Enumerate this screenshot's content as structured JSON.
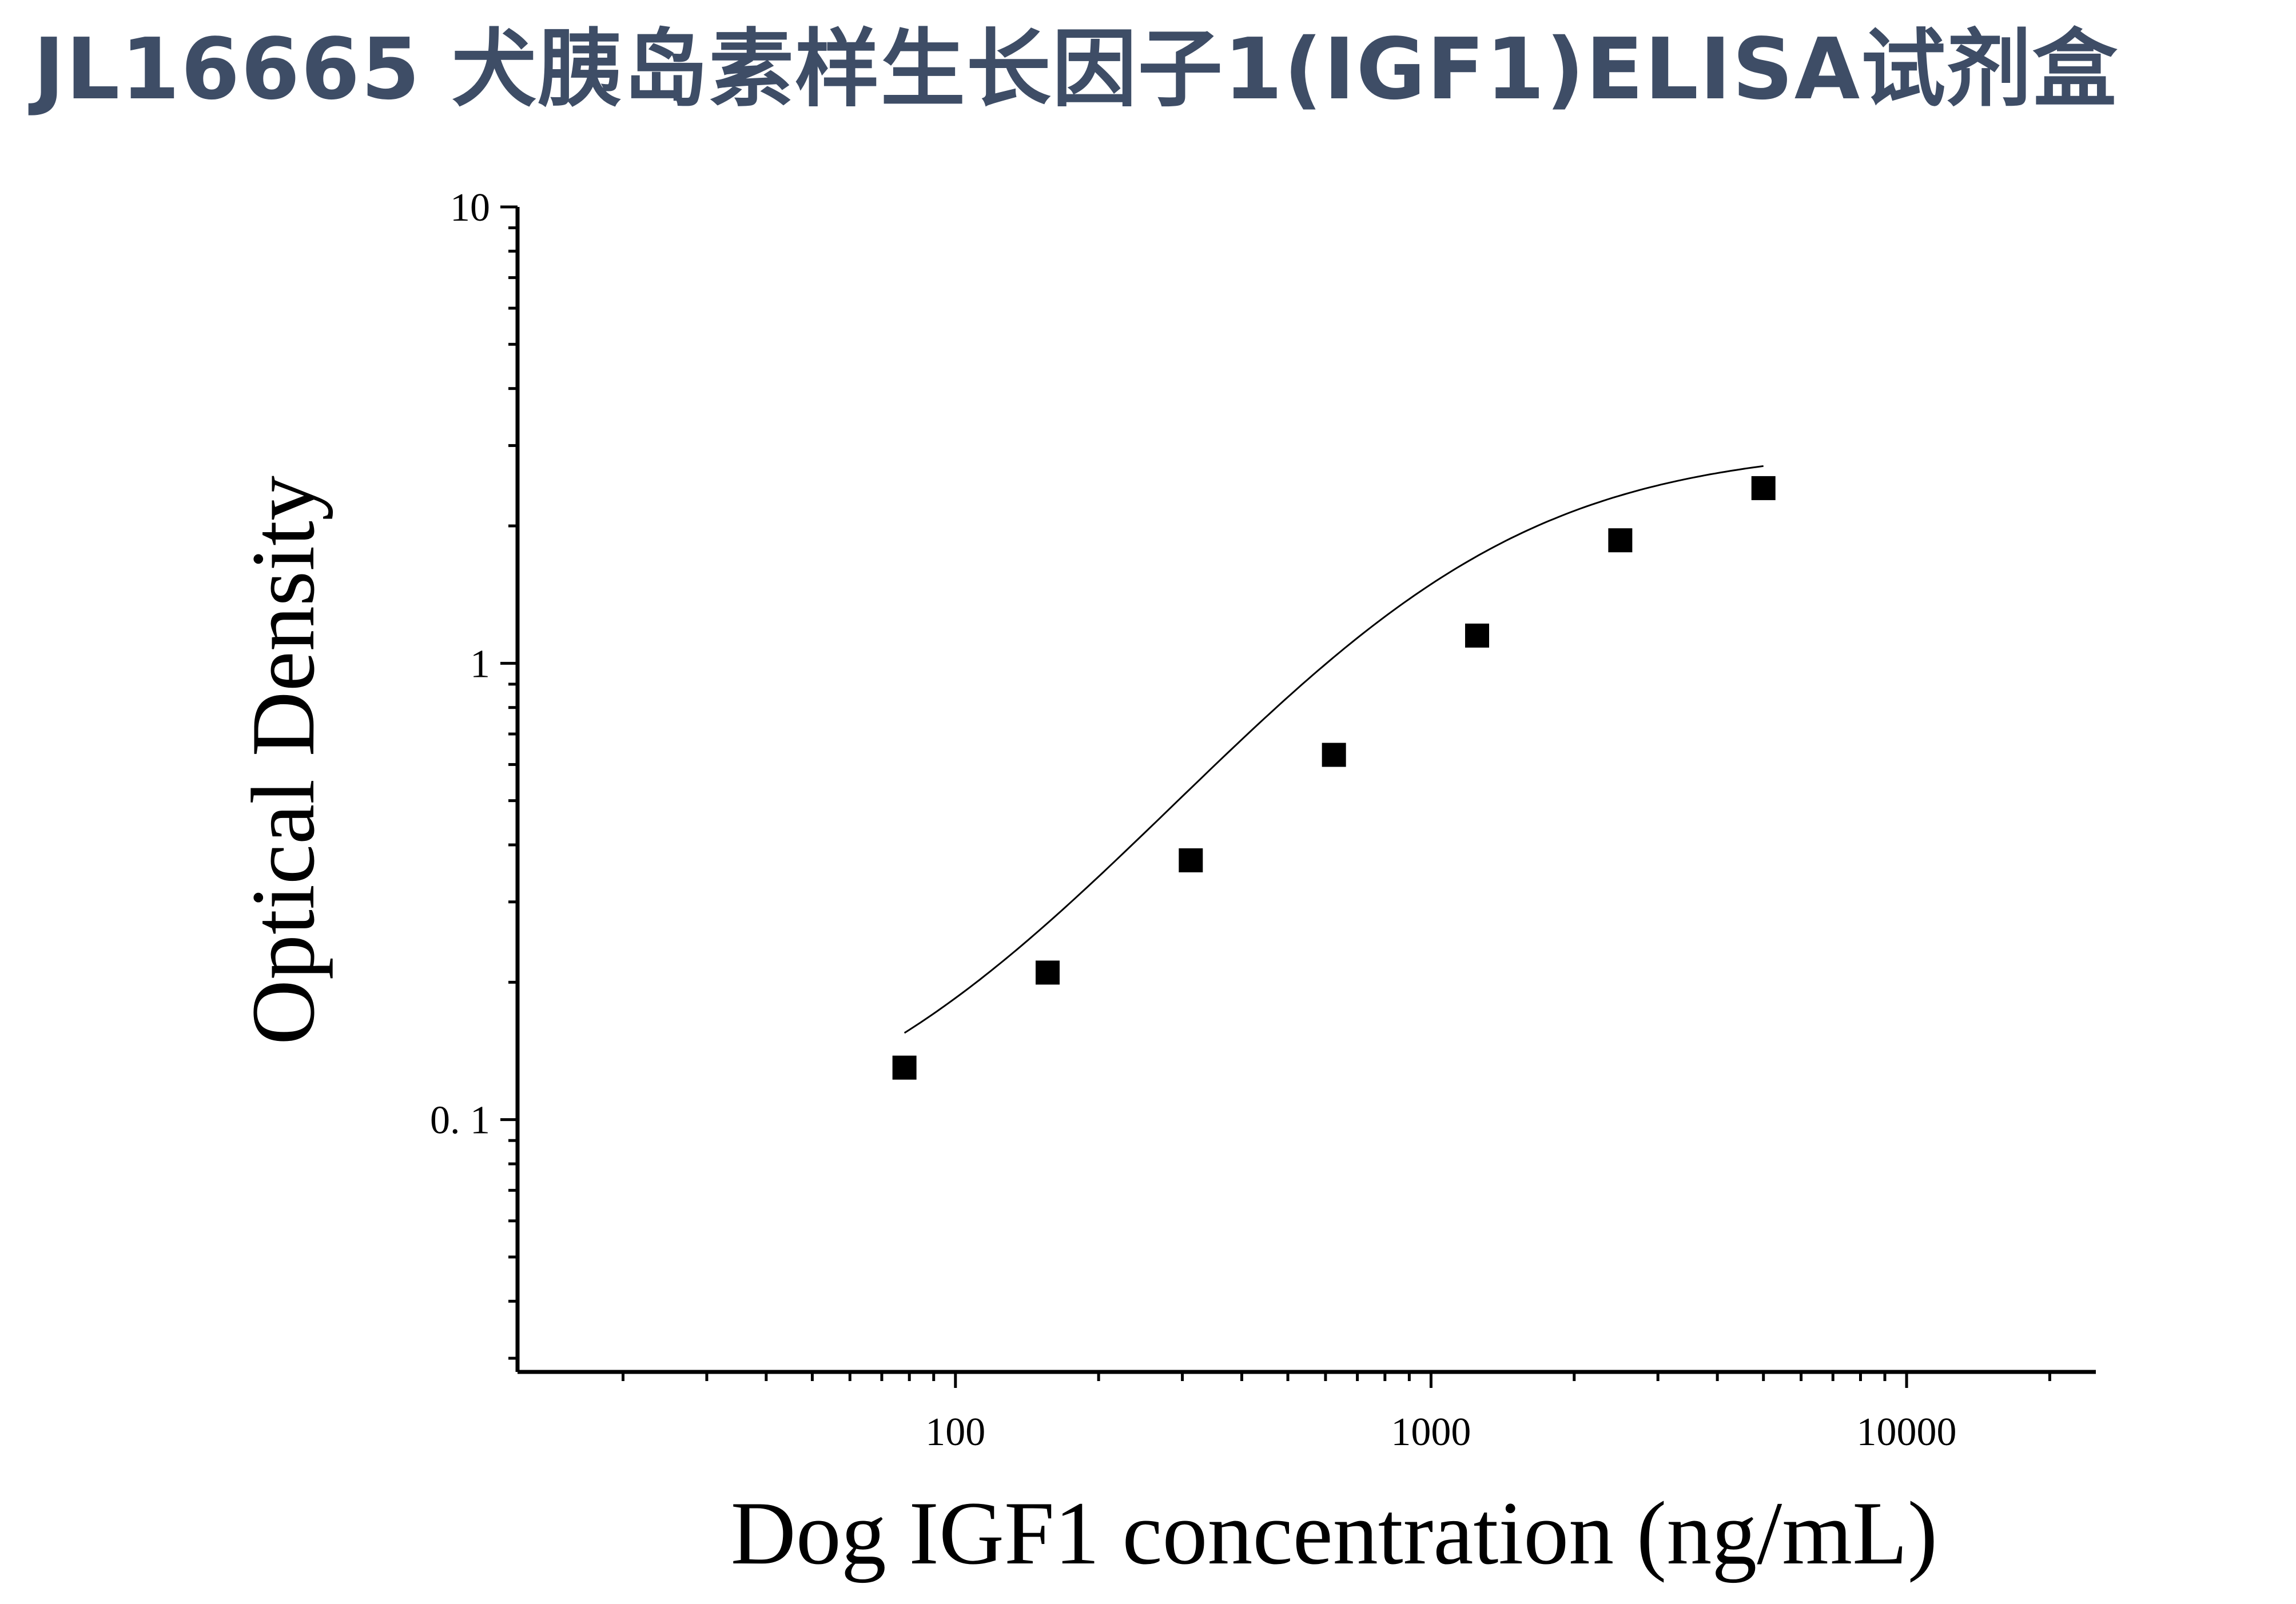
{
  "page": {
    "title": "JL16665 犬胰岛素样生长因子1(IGF1)ELISA试剂盒"
  },
  "chart_data": {
    "type": "scatter",
    "title": "",
    "xlabel": "Dog IGF1 concentration (ng/mL)",
    "ylabel": "Optical Density",
    "xscale": "log",
    "yscale": "log",
    "xlim": [
      12,
      25000
    ],
    "ylim": [
      0.028,
      10
    ],
    "xticks": [
      {
        "value": 100,
        "label": "100"
      },
      {
        "value": 1000,
        "label": "1000"
      },
      {
        "value": 10000,
        "label": "10000"
      }
    ],
    "yticks": [
      {
        "value": 0.1,
        "label": "0. 1"
      },
      {
        "value": 1,
        "label": "1"
      },
      {
        "value": 10,
        "label": "10"
      }
    ],
    "grid": false,
    "legend": "none",
    "series": [
      {
        "marker": "square",
        "color": "#000000",
        "x": [
          78.125,
          156.25,
          312.5,
          625,
          1250,
          2500,
          5000
        ],
        "y": [
          0.13,
          0.21,
          0.37,
          0.63,
          1.15,
          1.86,
          2.42
        ]
      }
    ],
    "fit_curve": {
      "type": "4PL",
      "color": "#000000",
      "x_range": [
        78.125,
        5000
      ],
      "A": 0.08,
      "B": 1.4,
      "C": 1050,
      "D": 3.0
    }
  }
}
